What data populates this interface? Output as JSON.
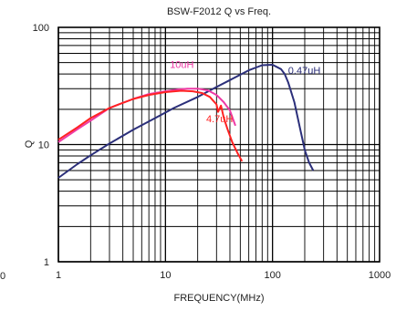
{
  "chart_data": {
    "type": "line",
    "title": "BSW-F2012 Q vs Freq.",
    "xlabel": "FREQUENCY(MHz)",
    "ylabel": "Q",
    "x_scale": "log",
    "y_scale": "log",
    "xlim": [
      1,
      1000
    ],
    "ylim": [
      1,
      100
    ],
    "x_ticks": [
      1,
      10,
      100,
      1000
    ],
    "y_ticks": [
      1,
      10,
      100
    ],
    "x_tick_labels": [
      "1",
      "10",
      "100",
      "1000"
    ],
    "y_tick_labels": [
      "1",
      "10",
      "100"
    ],
    "stray_label": "0",
    "grid": true,
    "series": [
      {
        "name": "0.47uH",
        "color": "#2b2f7a",
        "label_at": [
          140,
          40
        ],
        "x": [
          1,
          1.5,
          2,
          3,
          5,
          8,
          12,
          20,
          30,
          40,
          60,
          80,
          100,
          120,
          130,
          140,
          160,
          180,
          200,
          220,
          240
        ],
        "y": [
          5.2,
          6.8,
          8.1,
          10.2,
          13.4,
          16.8,
          20.5,
          25.5,
          31,
          35.5,
          43,
          47.5,
          48,
          44,
          40,
          34,
          23,
          14,
          9,
          7,
          6
        ]
      },
      {
        "name": "10uH",
        "color": "#ee3aa6",
        "label_at": [
          11,
          45
        ],
        "x": [
          1,
          1.5,
          2,
          3,
          5,
          7,
          10,
          13,
          16,
          20,
          25,
          30,
          35,
          40,
          45
        ],
        "y": [
          10.5,
          13.5,
          16,
          20.5,
          24.5,
          27,
          28.5,
          29.5,
          30,
          30,
          29,
          26.5,
          23,
          19.5,
          14.5
        ]
      },
      {
        "name": "4.7uH",
        "color": "#ff2222",
        "label_at": [
          24,
          15.5
        ],
        "x": [
          1,
          1.5,
          2,
          3,
          5,
          7,
          10,
          14,
          18,
          22,
          26,
          30,
          31,
          33,
          35,
          38,
          42,
          47,
          52
        ],
        "y": [
          11,
          14,
          16.8,
          20.5,
          24.5,
          26.5,
          28,
          28.8,
          28.5,
          27.5,
          25.5,
          22,
          19,
          21.5,
          17,
          13.5,
          10.5,
          8.5,
          7.2
        ]
      }
    ]
  }
}
